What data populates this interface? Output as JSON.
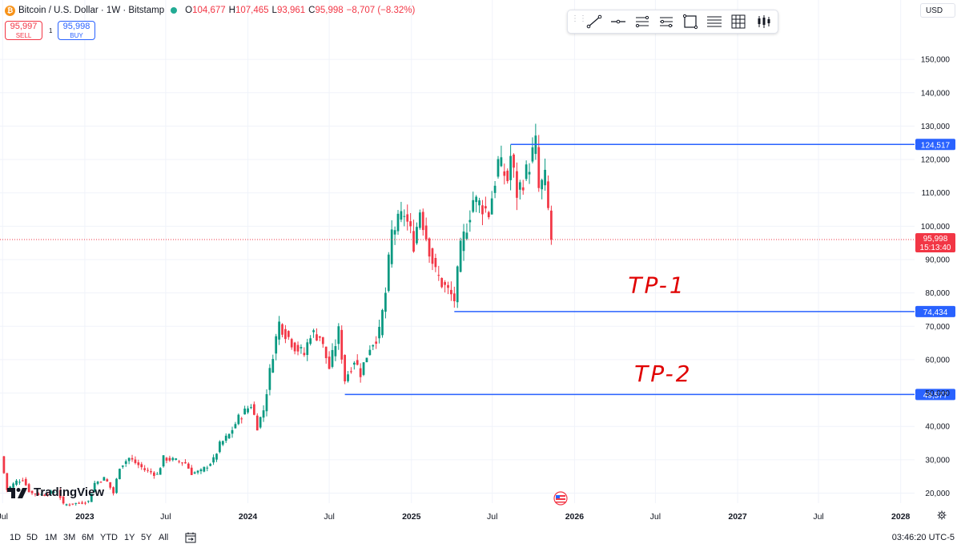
{
  "header": {
    "symbol_title": "Bitcoin / U.S. Dollar · 1W · Bitstamp",
    "ohlc": {
      "o_label": "O",
      "o": "104,677",
      "h_label": "H",
      "h": "107,465",
      "l_label": "L",
      "l": "93,961",
      "c_label": "C",
      "c": "95,998",
      "change": "−8,707 (−8.32%)"
    },
    "sell_price": "95,997",
    "sell_label": "SELL",
    "spread": "1",
    "buy_price": "95,998",
    "buy_label": "BUY",
    "currency": "USD"
  },
  "drawing_toolbar": {
    "tools": [
      "trend-line-icon",
      "horizontal-line-icon",
      "parallel-channel-icon",
      "regression-icon",
      "rectangle-icon",
      "fib-icon",
      "grid-icon",
      "candles-icon"
    ]
  },
  "chart_data": {
    "type": "candlestick",
    "ylim": [
      17000,
      157000
    ],
    "y_ticks": [
      {
        "v": 20000,
        "label": "20,000"
      },
      {
        "v": 30000,
        "label": "30,000"
      },
      {
        "v": 40000,
        "label": "40,000"
      },
      {
        "v": 50000,
        "label": "50,000"
      },
      {
        "v": 60000,
        "label": "60,000"
      },
      {
        "v": 70000,
        "label": "70,000"
      },
      {
        "v": 80000,
        "label": "80,000"
      },
      {
        "v": 90000,
        "label": "90,000"
      },
      {
        "v": 100000,
        "label": "100,000"
      },
      {
        "v": 110000,
        "label": "110,000"
      },
      {
        "v": 120000,
        "label": "120,000"
      },
      {
        "v": 130000,
        "label": "130,000"
      },
      {
        "v": 140000,
        "label": "140,000"
      },
      {
        "v": 150000,
        "label": "150,000"
      }
    ],
    "x_range": [
      "2022-06-27",
      "2028-02-01"
    ],
    "x_ticks": [
      {
        "date": "2022-07-01",
        "label": "Jul",
        "bold": false
      },
      {
        "date": "2023-01-01",
        "label": "2023",
        "bold": true
      },
      {
        "date": "2023-07-01",
        "label": "Jul",
        "bold": false
      },
      {
        "date": "2024-01-01",
        "label": "2024",
        "bold": true
      },
      {
        "date": "2024-07-01",
        "label": "Jul",
        "bold": false
      },
      {
        "date": "2025-01-01",
        "label": "2025",
        "bold": true
      },
      {
        "date": "2025-07-01",
        "label": "Jul",
        "bold": false
      },
      {
        "date": "2026-01-01",
        "label": "2026",
        "bold": true
      },
      {
        "date": "2026-07-01",
        "label": "Jul",
        "bold": false
      },
      {
        "date": "2027-01-01",
        "label": "2027",
        "bold": true
      },
      {
        "date": "2027-07-01",
        "label": "Jul",
        "bold": false
      },
      {
        "date": "2028-01-01",
        "label": "2028",
        "bold": true
      }
    ],
    "price_path": [
      [
        "2022-06-27",
        31000
      ],
      [
        "2022-07-11",
        21000
      ],
      [
        "2022-08-01",
        23500
      ],
      [
        "2022-08-15",
        24200
      ],
      [
        "2022-09-01",
        20000
      ],
      [
        "2022-10-01",
        19500
      ],
      [
        "2022-11-01",
        20800
      ],
      [
        "2022-11-14",
        16500
      ],
      [
        "2022-12-15",
        17000
      ],
      [
        "2023-01-09",
        17500
      ],
      [
        "2023-01-23",
        23000
      ],
      [
        "2023-02-15",
        24500
      ],
      [
        "2023-03-06",
        20000
      ],
      [
        "2023-03-20",
        28000
      ],
      [
        "2023-04-10",
        30500
      ],
      [
        "2023-05-15",
        27000
      ],
      [
        "2023-06-12",
        25500
      ],
      [
        "2023-06-26",
        30500
      ],
      [
        "2023-07-15",
        30000
      ],
      [
        "2023-08-14",
        29000
      ],
      [
        "2023-08-28",
        26000
      ],
      [
        "2023-09-18",
        26500
      ],
      [
        "2023-10-16",
        30000
      ],
      [
        "2023-10-30",
        34500
      ],
      [
        "2023-11-20",
        37500
      ],
      [
        "2023-12-11",
        42500
      ],
      [
        "2024-01-08",
        46500
      ],
      [
        "2024-01-22",
        40000
      ],
      [
        "2024-02-05",
        45000
      ],
      [
        "2024-02-26",
        62000
      ],
      [
        "2024-03-11",
        71000
      ],
      [
        "2024-03-25",
        68000
      ],
      [
        "2024-04-15",
        64000
      ],
      [
        "2024-05-06",
        61500
      ],
      [
        "2024-05-20",
        68000
      ],
      [
        "2024-06-10",
        67000
      ],
      [
        "2024-07-01",
        57500
      ],
      [
        "2024-07-22",
        68500
      ],
      [
        "2024-08-05",
        54000
      ],
      [
        "2024-08-26",
        60000
      ],
      [
        "2024-09-09",
        56000
      ],
      [
        "2024-09-30",
        64000
      ],
      [
        "2024-10-21",
        68000
      ],
      [
        "2024-11-04",
        80000
      ],
      [
        "2024-11-18",
        98000
      ],
      [
        "2024-12-16",
        104000
      ],
      [
        "2025-01-06",
        95000
      ],
      [
        "2025-01-20",
        105000
      ],
      [
        "2025-02-03",
        97000
      ],
      [
        "2025-02-24",
        86000
      ],
      [
        "2025-03-10",
        83000
      ],
      [
        "2025-04-07",
        78000
      ],
      [
        "2025-04-21",
        93000
      ],
      [
        "2025-05-19",
        108000
      ],
      [
        "2025-06-09",
        106000
      ],
      [
        "2025-06-23",
        104000
      ],
      [
        "2025-07-14",
        119000
      ],
      [
        "2025-08-04",
        114000
      ],
      [
        "2025-08-11",
        121000
      ],
      [
        "2025-08-25",
        110000
      ],
      [
        "2025-09-15",
        116000
      ],
      [
        "2025-10-06",
        124500
      ],
      [
        "2025-10-13",
        111000
      ],
      [
        "2025-10-27",
        114000
      ],
      [
        "2025-11-03",
        104677
      ],
      [
        "2025-11-10",
        95998
      ]
    ],
    "levels": [
      {
        "name": "ath-line",
        "value": 124517,
        "label": "124,517",
        "from": "2025-08-11"
      },
      {
        "name": "tp1-line",
        "value": 74434,
        "label": "74,434",
        "from": "2025-04-07"
      },
      {
        "name": "tp2-line",
        "value": 49577,
        "label": "49,577",
        "from": "2024-08-05"
      }
    ],
    "current_price": {
      "value": 95998,
      "label": "95,998",
      "countdown": "15:13:40"
    },
    "annotations": [
      {
        "text": "TP-1",
        "near_value": 80000,
        "at": "2026-05-01"
      },
      {
        "text": "TP-2",
        "near_value": 53500,
        "at": "2026-05-15"
      }
    ],
    "colors": {
      "up": "#089981",
      "down": "#f23645",
      "level": "#2962ff",
      "grid": "#f0f3fa",
      "ink": "#e00000"
    }
  },
  "timeframes": [
    "1D",
    "5D",
    "1M",
    "3M",
    "6M",
    "YTD",
    "1Y",
    "5Y",
    "All"
  ],
  "clock": "03:46:20 UTC-5",
  "brand": "TradingView"
}
